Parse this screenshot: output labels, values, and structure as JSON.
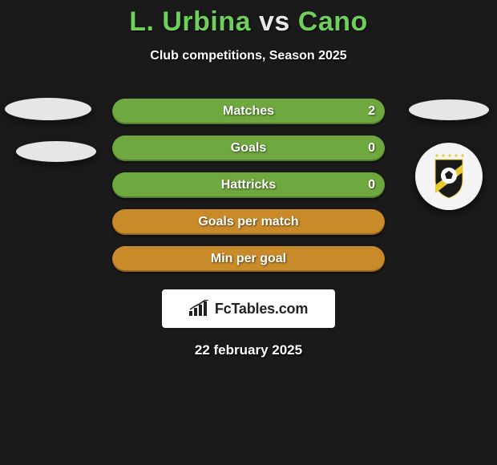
{
  "title": {
    "player1": "L. Urbina",
    "versus": "vs",
    "player2": "Cano"
  },
  "subtitle": "Club competitions, Season 2025",
  "stats": {
    "row_bg_colors": {
      "green": "#6ea83e",
      "orange": "#c98a2a"
    },
    "rows": [
      {
        "label": "Matches",
        "left": "",
        "right": "2",
        "color": "green"
      },
      {
        "label": "Goals",
        "left": "",
        "right": "0",
        "color": "green"
      },
      {
        "label": "Hattricks",
        "left": "",
        "right": "0",
        "color": "green"
      },
      {
        "label": "Goals per match",
        "left": "",
        "right": "",
        "color": "orange"
      },
      {
        "label": "Min per goal",
        "left": "",
        "right": "",
        "color": "orange"
      }
    ]
  },
  "branding": {
    "text": "FcTables.com"
  },
  "date": "22 february 2025",
  "badge": {
    "shield_color": "#1a1a1a",
    "stripe_color": "#e8c92e",
    "ball_color": "#ffffff",
    "stars_color": "#e8c92e"
  }
}
